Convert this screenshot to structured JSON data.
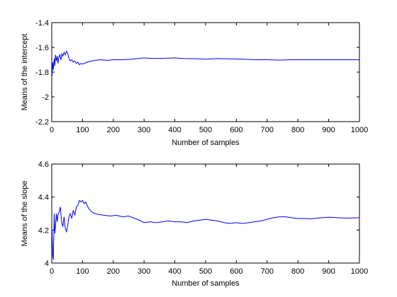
{
  "chart_data": [
    {
      "type": "line",
      "xlabel": "Number of samples",
      "ylabel": "Means of the intercept",
      "xlim": [
        0,
        1000
      ],
      "ylim": [
        -2.2,
        -1.4
      ],
      "xticks": [
        "0",
        "100",
        "200",
        "300",
        "400",
        "500",
        "600",
        "700",
        "800",
        "900",
        "1000"
      ],
      "yticks": [
        "-2.2",
        "-2",
        "-1.8",
        "-1.6",
        "-1.4"
      ],
      "grid": false,
      "line_color": "#0000ff",
      "series": [
        {
          "x": [
            1,
            3,
            5,
            8,
            10,
            12,
            15,
            18,
            20,
            23,
            26,
            30,
            33,
            36,
            40,
            44,
            48,
            52,
            56,
            60,
            65,
            70,
            75,
            80,
            85,
            90,
            95,
            100,
            110,
            120,
            140,
            160,
            180,
            200,
            230,
            260,
            300,
            330,
            370,
            400,
            430,
            470,
            500,
            540,
            580,
            620,
            660,
            700,
            740,
            780,
            820,
            860,
            900,
            950,
            1000
          ],
          "y": [
            -1.83,
            -1.72,
            -1.78,
            -1.69,
            -1.75,
            -1.66,
            -1.71,
            -1.67,
            -1.73,
            -1.68,
            -1.66,
            -1.7,
            -1.65,
            -1.67,
            -1.64,
            -1.66,
            -1.63,
            -1.65,
            -1.69,
            -1.71,
            -1.7,
            -1.72,
            -1.71,
            -1.73,
            -1.72,
            -1.74,
            -1.73,
            -1.735,
            -1.725,
            -1.715,
            -1.705,
            -1.7,
            -1.705,
            -1.7,
            -1.7,
            -1.695,
            -1.685,
            -1.69,
            -1.688,
            -1.685,
            -1.69,
            -1.692,
            -1.695,
            -1.69,
            -1.693,
            -1.695,
            -1.7,
            -1.7,
            -1.703,
            -1.7,
            -1.7,
            -1.7,
            -1.7,
            -1.7,
            -1.7
          ]
        }
      ]
    },
    {
      "type": "line",
      "xlabel": "Number of samples",
      "ylabel": "Means of the slope",
      "xlim": [
        0,
        1000
      ],
      "ylim": [
        4.0,
        4.6
      ],
      "xticks": [
        "0",
        "100",
        "200",
        "300",
        "400",
        "500",
        "600",
        "700",
        "800",
        "900",
        "1000"
      ],
      "yticks": [
        "4",
        "4.2",
        "4.4",
        "4.6"
      ],
      "grid": false,
      "line_color": "#0000ff",
      "series": [
        {
          "x": [
            1,
            3,
            5,
            8,
            10,
            12,
            15,
            18,
            20,
            24,
            28,
            32,
            36,
            40,
            44,
            48,
            52,
            56,
            60,
            65,
            70,
            75,
            80,
            85,
            90,
            95,
            100,
            105,
            110,
            115,
            120,
            130,
            140,
            150,
            170,
            190,
            210,
            230,
            250,
            270,
            290,
            300,
            320,
            340,
            360,
            380,
            400,
            420,
            440,
            460,
            480,
            500,
            520,
            540,
            560,
            580,
            600,
            620,
            640,
            660,
            680,
            700,
            720,
            740,
            760,
            780,
            800,
            820,
            840,
            860,
            880,
            900,
            930,
            960,
            1000
          ],
          "y": [
            4.2,
            4.05,
            4.02,
            4.3,
            4.18,
            4.22,
            4.3,
            4.25,
            4.29,
            4.31,
            4.34,
            4.25,
            4.22,
            4.28,
            4.21,
            4.19,
            4.23,
            4.28,
            4.3,
            4.27,
            4.32,
            4.29,
            4.34,
            4.35,
            4.38,
            4.37,
            4.38,
            4.36,
            4.37,
            4.35,
            4.33,
            4.31,
            4.3,
            4.295,
            4.29,
            4.285,
            4.29,
            4.28,
            4.285,
            4.27,
            4.255,
            4.245,
            4.25,
            4.245,
            4.25,
            4.255,
            4.25,
            4.25,
            4.245,
            4.255,
            4.26,
            4.265,
            4.26,
            4.255,
            4.245,
            4.24,
            4.245,
            4.24,
            4.245,
            4.25,
            4.255,
            4.265,
            4.275,
            4.28,
            4.28,
            4.275,
            4.27,
            4.27,
            4.268,
            4.272,
            4.275,
            4.278,
            4.275,
            4.272,
            4.275
          ]
        }
      ]
    }
  ]
}
